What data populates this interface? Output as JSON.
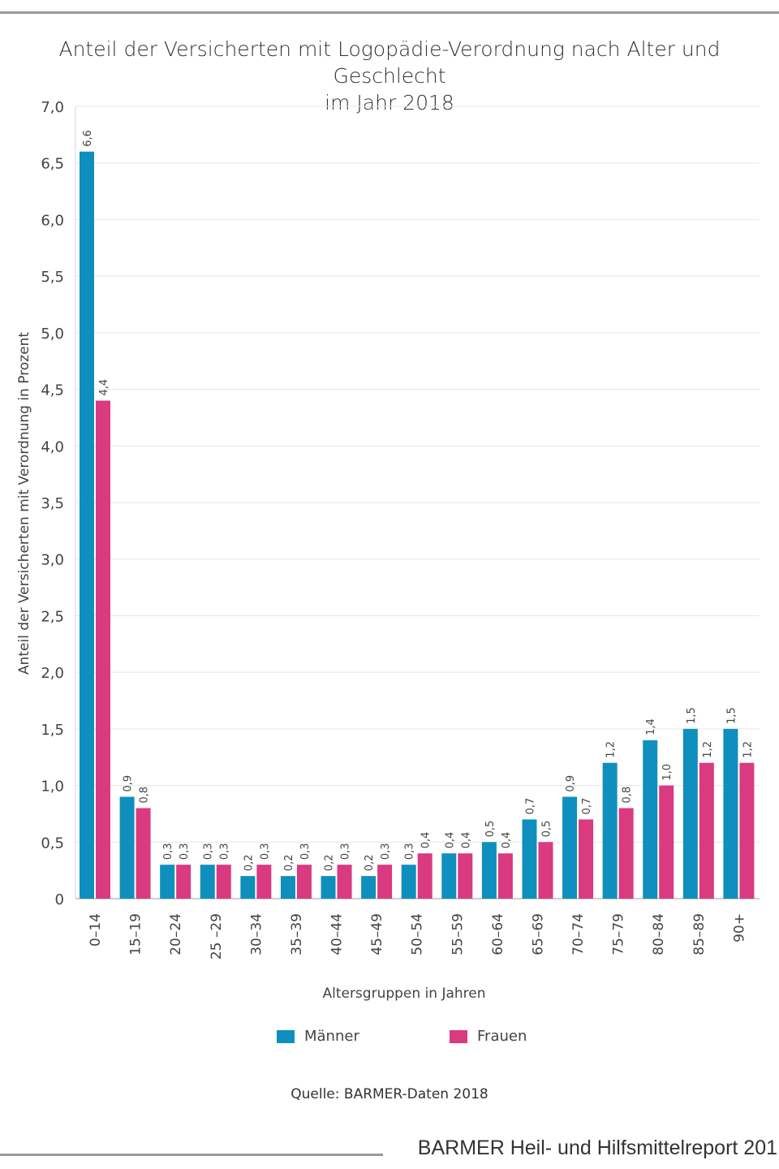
{
  "chart_data": {
    "type": "bar",
    "title": "Anteil der Versicherten mit Logopädie-Verordnung nach Alter und Geschlecht im Jahr 2018",
    "title_lines": [
      "Anteil der Versicherten mit Logopädie-Verordnung nach Alter und Geschlecht",
      "im Jahr 2018"
    ],
    "xlabel": "Altersgruppen in Jahren",
    "ylabel": "Anteil der Versicherten mit Verordnung in Prozent",
    "ylim": [
      0,
      7
    ],
    "yticks": [
      0,
      0.5,
      1,
      1.5,
      2,
      2.5,
      3,
      3.5,
      4,
      4.5,
      5,
      5.5,
      6,
      6.5,
      7
    ],
    "ytick_labels": [
      "0",
      "0,5",
      "1,0",
      "1,5",
      "2,0",
      "2,5",
      "3,0",
      "3,5",
      "4,0",
      "4,5",
      "5,0",
      "5,5",
      "6,0",
      "6,5",
      "7,0"
    ],
    "grid": true,
    "legend_position": "bottom",
    "categories": [
      "0–14",
      "15–19",
      "20–24",
      "25 –29",
      "30–34",
      "35–39",
      "40–44",
      "45–49",
      "50–54",
      "55–59",
      "60–64",
      "65–69",
      "70–74",
      "75–79",
      "80–84",
      "85–89",
      "90+"
    ],
    "series": [
      {
        "name": "Männer",
        "color": "#0f8fbd",
        "values": [
          6.6,
          0.9,
          0.3,
          0.3,
          0.2,
          0.2,
          0.2,
          0.2,
          0.3,
          0.4,
          0.5,
          0.7,
          0.9,
          1.2,
          1.4,
          1.5,
          1.5
        ]
      },
      {
        "name": "Frauen",
        "color": "#d93a80",
        "values": [
          4.4,
          0.8,
          0.3,
          0.3,
          0.3,
          0.3,
          0.3,
          0.3,
          0.4,
          0.4,
          0.4,
          0.5,
          0.7,
          0.8,
          1.0,
          1.2,
          1.2
        ]
      }
    ]
  },
  "source": "Quelle: BARMER-Daten 2018",
  "footer": "BARMER Heil- und Hilfsmittelreport 201"
}
